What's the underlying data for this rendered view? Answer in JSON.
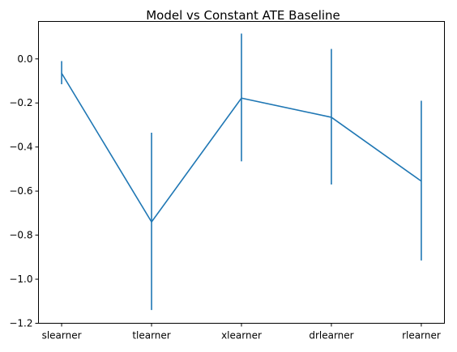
{
  "chart_data": {
    "type": "line",
    "title": "Model vs Constant ATE Baseline",
    "xlabel": "",
    "ylabel": "",
    "categories": [
      "slearner",
      "tlearner",
      "xlearner",
      "drlearner",
      "rlearner"
    ],
    "series": [
      {
        "values": [
          -0.065,
          -0.74,
          -0.178,
          -0.265,
          -0.555
        ],
        "error_low": [
          -0.115,
          -1.14,
          -0.465,
          -0.57,
          -0.915
        ],
        "error_high": [
          -0.01,
          -0.335,
          0.115,
          0.045,
          -0.19
        ]
      }
    ],
    "ylim": [
      -1.2,
      0.17
    ],
    "yticks": [
      0.0,
      -0.2,
      -0.4,
      -0.6,
      -0.8,
      -1.0,
      -1.2
    ],
    "ytick_labels": [
      "0.0",
      "−0.2",
      "−0.4",
      "−0.6",
      "−0.8",
      "−1.0",
      "−1.2"
    ],
    "grid": false,
    "legend": "none",
    "colors": {
      "line": "#1f77b4",
      "axes": "#000000"
    }
  }
}
